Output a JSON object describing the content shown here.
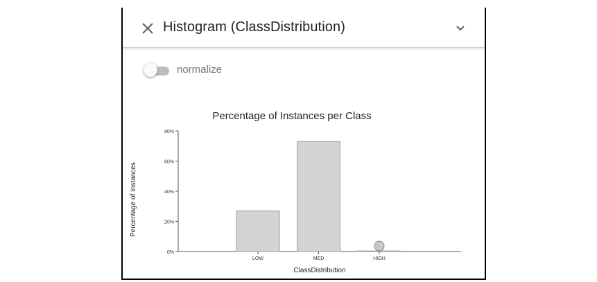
{
  "header": {
    "title": "Histogram (ClassDistribution)",
    "close_icon": "close-icon",
    "expand_icon": "chevron-down-icon"
  },
  "toggle": {
    "label": "normalize",
    "state": "off"
  },
  "chart_data": {
    "type": "bar",
    "title": "Percentage of Instances per Class",
    "xlabel": "ClassDistribution",
    "ylabel": "Percentage of Instances",
    "categories": [
      "LOW",
      "MED",
      "HIGH"
    ],
    "values": [
      27,
      73,
      0.4
    ],
    "ylim": [
      0,
      80
    ],
    "yticks": [
      0,
      20,
      40,
      60,
      80
    ],
    "yticklabels": [
      "0%",
      "20%",
      "40%",
      "60%",
      "80%"
    ],
    "grid": false,
    "colors": {
      "bar": "#d3d3d3",
      "bar_stroke": "#9e9e9e",
      "axis": "#555555"
    }
  }
}
